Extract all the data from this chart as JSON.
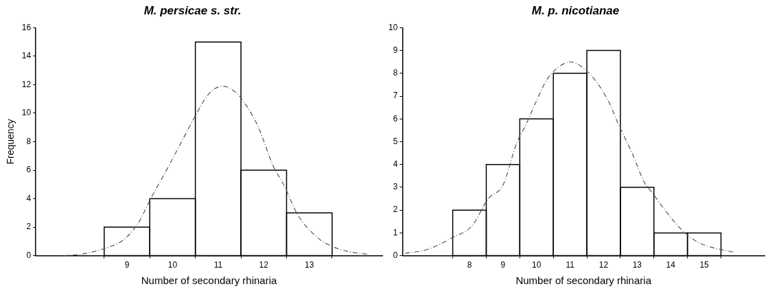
{
  "chart_data": [
    {
      "type": "histogram",
      "title": "M. persicae s. str.",
      "xlabel": "Number of secondary rhinaria",
      "ylabel": "Frequency",
      "xlim": [
        7,
        14.6
      ],
      "xticks": [
        9,
        10,
        11,
        12,
        13
      ],
      "ylim": [
        0,
        16
      ],
      "yticks": [
        0,
        2,
        4,
        6,
        8,
        10,
        12,
        14,
        16
      ],
      "grid": false,
      "legend": false,
      "series": [
        {
          "color": "#000000",
          "bins": [
            8.5,
            9.5,
            10.5,
            11.5,
            12.5,
            13.5
          ],
          "values": [
            2,
            4,
            15,
            6,
            3
          ]
        },
        {
          "type": "line",
          "color": "#555555",
          "line_style": "dashed",
          "marker": "none",
          "x": [
            7.6,
            7.99,
            8.5,
            8.92,
            9.25,
            9.52,
            9.9,
            10.23,
            10.48,
            10.78,
            11.1,
            11.37,
            11.54,
            11.87,
            12.22,
            12.42,
            12.74,
            13.13,
            13.4,
            13.84,
            14.27
          ],
          "values": [
            0,
            0.1,
            0.5,
            1.1,
            2.3,
            4.0,
            6.2,
            8.2,
            9.7,
            11.3,
            11.9,
            11.5,
            10.9,
            9.1,
            6.2,
            5.1,
            2.9,
            1.4,
            0.8,
            0.3,
            0.1
          ]
        }
      ]
    },
    {
      "type": "histogram",
      "title": "M. p. nicotianae",
      "xlabel": "Number of secondary rhinaria",
      "xlim": [
        6,
        16.8
      ],
      "xticks": [
        8,
        9,
        10,
        11,
        12,
        13,
        14,
        15
      ],
      "ylim": [
        0,
        10
      ],
      "yticks": [
        0,
        1,
        2,
        3,
        4,
        5,
        6,
        7,
        8,
        9,
        10
      ],
      "grid": false,
      "legend": false,
      "series": [
        {
          "color": "#000000",
          "bins": [
            7.5,
            8.5,
            9.5,
            10.5,
            11.5,
            12.5,
            13.5,
            14.5,
            15.5
          ],
          "values": [
            2,
            4,
            6,
            8,
            9,
            3,
            1,
            1
          ]
        },
        {
          "type": "line",
          "color": "#555555",
          "line_style": "dashed",
          "marker": "none",
          "x": [
            6.08,
            6.76,
            7.5,
            8.07,
            8.56,
            9,
            9.4,
            9.7,
            10,
            10.3,
            10.68,
            11.02,
            11.42,
            11.8,
            12.17,
            12.43,
            12.85,
            13.22,
            13.43,
            13.83,
            14.35,
            14.8,
            15.4,
            15.9
          ],
          "values": [
            0.1,
            0.28,
            0.8,
            1.3,
            2.5,
            3.1,
            4.9,
            5.8,
            6.8,
            7.7,
            8.3,
            8.5,
            8.2,
            7.6,
            6.7,
            5.8,
            4.5,
            3.2,
            2.8,
            2.0,
            1.1,
            0.6,
            0.3,
            0.15
          ]
        }
      ]
    }
  ]
}
